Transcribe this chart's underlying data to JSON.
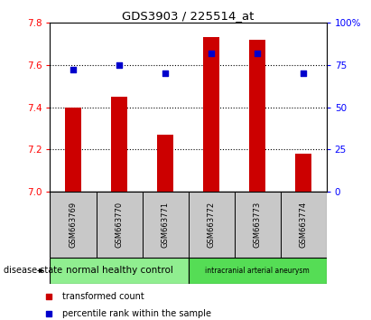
{
  "title": "GDS3903 / 225514_at",
  "samples": [
    "GSM663769",
    "GSM663770",
    "GSM663771",
    "GSM663772",
    "GSM663773",
    "GSM663774"
  ],
  "transformed_count": [
    7.4,
    7.45,
    7.27,
    7.73,
    7.72,
    7.18
  ],
  "percentile_rank": [
    72,
    75,
    70,
    82,
    82,
    70
  ],
  "bar_baseline": 7.0,
  "ylim_left": [
    7.0,
    7.8
  ],
  "ylim_right": [
    0,
    100
  ],
  "yticks_left": [
    7.0,
    7.2,
    7.4,
    7.6,
    7.8
  ],
  "yticks_right": [
    0,
    25,
    50,
    75,
    100
  ],
  "bar_color": "#cc0000",
  "dot_color": "#0000cc",
  "gridline_color": "#000000",
  "groups": [
    {
      "label": "normal healthy control",
      "indices": [
        0,
        1,
        2
      ],
      "color": "#90ee90"
    },
    {
      "label": "intracranial arterial aneurysm",
      "indices": [
        3,
        4,
        5
      ],
      "color": "#55dd55"
    }
  ],
  "disease_state_label": "disease state",
  "legend_bar_label": "transformed count",
  "legend_dot_label": "percentile rank within the sample",
  "tick_bg_color": "#c8c8c8",
  "plot_bg_color": "#ffffff",
  "border_color": "#000000",
  "bar_width": 0.35
}
